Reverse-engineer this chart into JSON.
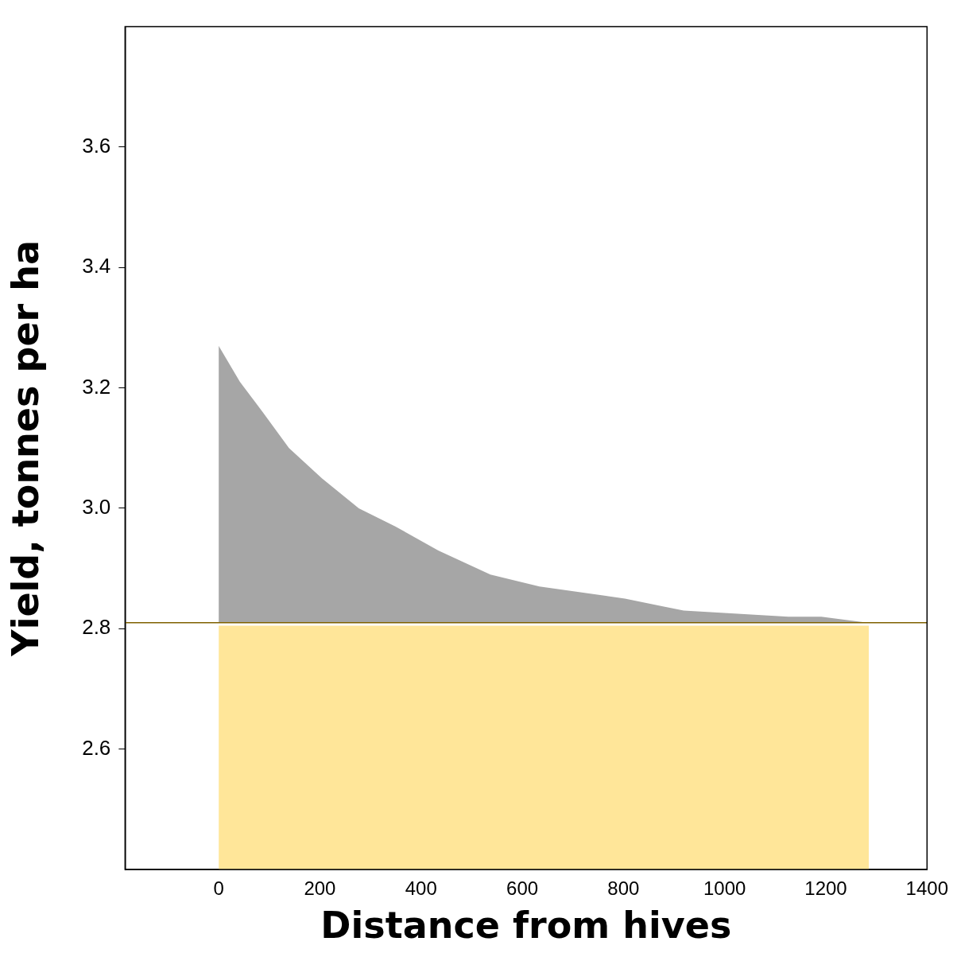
{
  "chart_data": {
    "type": "area",
    "xlabel": "Distance from hives",
    "ylabel": "Yield, tonnes per ha",
    "xlim": [
      -185,
      1400
    ],
    "xticks": [
      0,
      200,
      400,
      600,
      800,
      1000,
      1200,
      1400
    ],
    "ylim": [
      2.4,
      3.8
    ],
    "yticks": [
      2.6,
      2.8,
      {
        "value": 3,
        "label": "3.0"
      },
      3.2,
      3.4,
      3.6
    ],
    "series": [
      {
        "color": "#a6a6a6",
        "x": [
          0,
          42,
          87,
          139,
          204,
          277,
          349,
          434,
          537,
          634,
          803,
          919,
          1126,
          1191,
          1282
        ],
        "values": [
          3.27,
          3.21,
          3.16,
          3.1,
          3.05,
          3.0,
          2.97,
          2.93,
          2.89,
          2.87,
          2.85,
          2.83,
          2.82,
          2.82,
          2.81
        ]
      },
      {
        "color": "#ffe699",
        "x": [
          0,
          1285
        ],
        "values": [
          2.805,
          2.805
        ]
      }
    ],
    "ref_lines": [
      {
        "axis": "y",
        "value": 2.81,
        "color": "#7f6000"
      }
    ]
  }
}
